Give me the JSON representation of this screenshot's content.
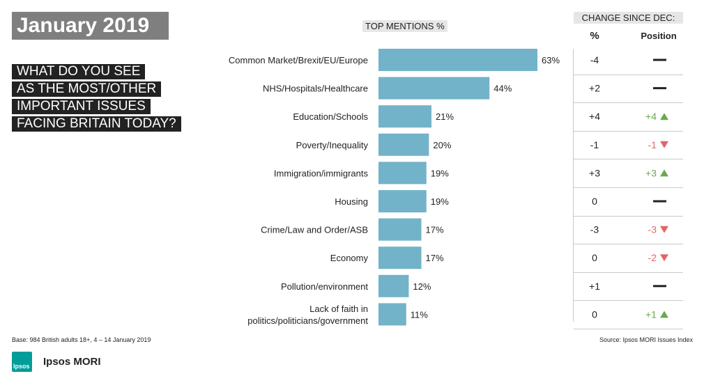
{
  "header": {
    "title": "January 2019",
    "question_lines": [
      "WHAT DO YOU SEE",
      "AS THE MOST/OTHER",
      "IMPORTANT ISSUES",
      "FACING BRITAIN TODAY?"
    ],
    "top_mentions_label": "TOP MENTIONS %",
    "change_label": "CHANGE SINCE DEC:",
    "pct_col_label": "%",
    "position_col_label": "Position"
  },
  "footer": {
    "base": "Base: 984  British adults 18+, 4 – 14 January 2019",
    "source": "Source: Ipsos MORI Issues Index",
    "logo_text": "Ipsos",
    "brand": "Ipsos MORI"
  },
  "colors": {
    "bar": "#72b3c9",
    "up": "#6aa84f",
    "down": "#e06666",
    "neutral": "#222222"
  },
  "chart_data": {
    "type": "bar",
    "orientation": "horizontal",
    "categories": [
      [
        "Common Market/Brexit/EU/Europe"
      ],
      [
        "NHS/Hospitals/Healthcare"
      ],
      [
        "Education/Schools"
      ],
      [
        "Poverty/Inequality"
      ],
      [
        "Immigration/immigrants"
      ],
      [
        "Housing"
      ],
      [
        "Crime/Law and Order/ASB"
      ],
      [
        "Economy"
      ],
      [
        "Pollution/environment"
      ],
      [
        "Lack of faith in",
        "politics/politicians/government"
      ]
    ],
    "values": [
      63,
      44,
      21,
      20,
      19,
      19,
      17,
      17,
      12,
      11
    ],
    "value_labels": [
      "63%",
      "44%",
      "21%",
      "20%",
      "19%",
      "19%",
      "17%",
      "17%",
      "12%",
      "11%"
    ],
    "change_pct": [
      "-4",
      "+2",
      "+4",
      "-1",
      "+3",
      "0",
      "-3",
      "0",
      "+1",
      "0"
    ],
    "position_change": [
      {
        "dir": "none",
        "text": ""
      },
      {
        "dir": "none",
        "text": ""
      },
      {
        "dir": "up",
        "text": "+4"
      },
      {
        "dir": "down",
        "text": "-1"
      },
      {
        "dir": "up",
        "text": "+3"
      },
      {
        "dir": "none",
        "text": ""
      },
      {
        "dir": "down",
        "text": "-3"
      },
      {
        "dir": "down",
        "text": "-2"
      },
      {
        "dir": "none",
        "text": ""
      },
      {
        "dir": "up",
        "text": "+1"
      }
    ],
    "xlim": [
      0,
      63
    ]
  }
}
